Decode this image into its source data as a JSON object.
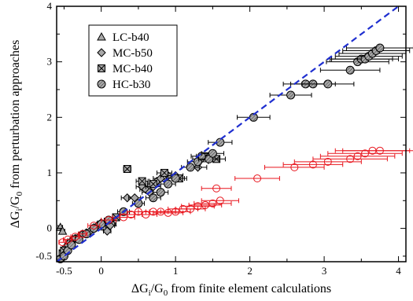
{
  "chart_data": {
    "type": "scatter",
    "xlabel": {
      "prefix": "ΔG",
      "sub1": "i",
      "mid": "/G",
      "sub2": "0",
      "suffix": " from finite element calculations"
    },
    "ylabel": {
      "prefix": "ΔG",
      "sub1": "i",
      "mid": "/G",
      "sub2": "0",
      "suffix": " from perturbation approaches"
    },
    "xlim": [
      -0.6,
      4.1
    ],
    "ylim": [
      -0.6,
      4.0
    ],
    "x_ticks": [
      -0.5,
      0,
      0.5,
      1,
      1.5,
      2,
      2.5,
      3,
      3.5,
      4
    ],
    "x_tick_labels": [
      "-0.5",
      "0",
      "1",
      "2",
      "3",
      "4"
    ],
    "y_ticks": [
      -0.5,
      0,
      0.5,
      1,
      1.5,
      2,
      2.5,
      3,
      3.5,
      4
    ],
    "y_tick_labels": [
      "-0.5",
      "0",
      "1",
      "2",
      "3",
      "4"
    ],
    "grid": false,
    "legend_position": "top-left",
    "legend": [
      {
        "label": "LC-b40",
        "marker": "triangle"
      },
      {
        "label": "MC-b50",
        "marker": "diamond"
      },
      {
        "label": "MC-b40",
        "marker": "square-x"
      },
      {
        "label": "HC-b30",
        "marker": "circle-hatched"
      }
    ],
    "reference_line": {
      "style": "dashed",
      "color": "#1f2fd0",
      "from": [
        -0.6,
        -0.6
      ],
      "to": [
        4.0,
        4.0
      ]
    },
    "colors": {
      "black_series": "#000000",
      "red_series": "#e8141c",
      "marker_fill": "#a8a8a8"
    },
    "series": [
      {
        "marker": "triangle",
        "color": "#000000",
        "points": [
          [
            -0.55,
            0.02
          ],
          [
            -0.52,
            -0.05
          ],
          [
            -0.4,
            -0.22
          ],
          [
            -0.3,
            -0.18
          ],
          [
            0.05,
            0.08
          ],
          [
            0.15,
            0.1
          ]
        ],
        "xerr": [
          0.03,
          0.03,
          0.05,
          0.05,
          0.05,
          0.05
        ]
      },
      {
        "marker": "diamond",
        "color": "#000000",
        "points": [
          [
            -0.48,
            -0.35
          ],
          [
            -0.45,
            -0.3
          ],
          [
            -0.42,
            -0.25
          ],
          [
            -0.38,
            -0.2
          ],
          [
            -0.35,
            -0.18
          ],
          [
            -0.3,
            -0.15
          ],
          [
            -0.25,
            -0.1
          ],
          [
            -0.2,
            -0.08
          ],
          [
            -0.15,
            -0.05
          ],
          [
            -0.1,
            0.0
          ],
          [
            -0.05,
            0.05
          ],
          [
            0.0,
            0.1
          ],
          [
            0.05,
            0.0
          ],
          [
            0.08,
            -0.05
          ],
          [
            0.12,
            0.05
          ],
          [
            0.35,
            0.55
          ],
          [
            0.45,
            0.55
          ],
          [
            0.55,
            0.75
          ],
          [
            0.6,
            0.7
          ],
          [
            0.65,
            0.65
          ],
          [
            0.7,
            0.75
          ],
          [
            0.75,
            0.85
          ],
          [
            0.8,
            0.9
          ],
          [
            0.9,
            0.95
          ],
          [
            1.0,
            0.95
          ],
          [
            1.3,
            1.1
          ],
          [
            1.35,
            1.25
          ],
          [
            1.45,
            1.25
          ]
        ],
        "xerr": [
          0.04,
          0.04,
          0.04,
          0.04,
          0.05,
          0.05,
          0.05,
          0.05,
          0.05,
          0.05,
          0.05,
          0.05,
          0.05,
          0.05,
          0.06,
          0.08,
          0.08,
          0.08,
          0.08,
          0.1,
          0.1,
          0.1,
          0.1,
          0.1,
          0.1,
          0.12,
          0.12,
          0.12
        ]
      },
      {
        "marker": "square-x",
        "color": "#000000",
        "points": [
          [
            -0.52,
            -0.45
          ],
          [
            -0.5,
            -0.4
          ],
          [
            0.2,
            0.2
          ],
          [
            0.35,
            1.07
          ],
          [
            0.55,
            0.85
          ],
          [
            0.7,
            0.8
          ],
          [
            0.85,
            1.0
          ],
          [
            1.05,
            0.9
          ],
          [
            1.4,
            1.3
          ],
          [
            1.55,
            1.25
          ]
        ],
        "xerr": [
          0.04,
          0.04,
          0.05,
          0.05,
          0.08,
          0.08,
          0.1,
          0.1,
          0.12,
          0.12
        ]
      },
      {
        "marker": "circle-hatched",
        "color": "#000000",
        "points": [
          [
            -0.55,
            -0.55
          ],
          [
            -0.5,
            -0.5
          ],
          [
            -0.45,
            -0.4
          ],
          [
            -0.4,
            -0.3
          ],
          [
            -0.3,
            -0.2
          ],
          [
            -0.2,
            -0.1
          ],
          [
            -0.1,
            0.0
          ],
          [
            0.0,
            0.08
          ],
          [
            0.1,
            0.15
          ],
          [
            0.3,
            0.3
          ],
          [
            0.5,
            0.45
          ],
          [
            0.7,
            0.55
          ],
          [
            0.8,
            0.65
          ],
          [
            0.9,
            0.8
          ],
          [
            1.0,
            0.9
          ],
          [
            1.2,
            1.1
          ],
          [
            1.3,
            1.2
          ],
          [
            1.35,
            1.3
          ],
          [
            1.45,
            1.25
          ],
          [
            1.5,
            1.35
          ],
          [
            1.6,
            1.55
          ],
          [
            2.05,
            2.0
          ],
          [
            2.55,
            2.4
          ],
          [
            2.75,
            2.6
          ],
          [
            2.85,
            2.6
          ],
          [
            3.05,
            2.6
          ],
          [
            3.35,
            2.85
          ],
          [
            3.45,
            3.0
          ],
          [
            3.5,
            3.05
          ],
          [
            3.55,
            3.05
          ],
          [
            3.6,
            3.1
          ],
          [
            3.65,
            3.15
          ],
          [
            3.7,
            3.2
          ],
          [
            3.75,
            3.25
          ]
        ],
        "xerr": [
          0.03,
          0.03,
          0.04,
          0.04,
          0.05,
          0.05,
          0.05,
          0.06,
          0.06,
          0.08,
          0.08,
          0.1,
          0.1,
          0.1,
          0.12,
          0.12,
          0.14,
          0.14,
          0.14,
          0.15,
          0.16,
          0.22,
          0.28,
          0.3,
          0.3,
          0.35,
          0.4,
          0.42,
          0.42,
          0.45,
          0.45,
          0.45,
          0.45,
          0.45
        ]
      },
      {
        "marker": "open-circle",
        "color": "#e8141c",
        "points": [
          [
            -0.52,
            -0.25
          ],
          [
            -0.45,
            -0.2
          ],
          [
            -0.35,
            -0.15
          ],
          [
            -0.25,
            -0.1
          ],
          [
            -0.1,
            0.05
          ],
          [
            0.1,
            0.15
          ],
          [
            0.3,
            0.2
          ],
          [
            0.4,
            0.25
          ],
          [
            0.5,
            0.3
          ],
          [
            0.6,
            0.25
          ],
          [
            0.7,
            0.3
          ],
          [
            0.8,
            0.3
          ],
          [
            0.9,
            0.28
          ],
          [
            1.0,
            0.3
          ],
          [
            1.1,
            0.35
          ],
          [
            1.2,
            0.35
          ],
          [
            1.3,
            0.4
          ],
          [
            1.4,
            0.42
          ],
          [
            1.5,
            0.45
          ],
          [
            1.6,
            0.5
          ],
          [
            1.55,
            0.72
          ],
          [
            2.1,
            0.9
          ],
          [
            2.6,
            1.1
          ],
          [
            2.85,
            1.15
          ],
          [
            3.05,
            1.2
          ],
          [
            3.35,
            1.25
          ],
          [
            3.45,
            1.3
          ],
          [
            3.55,
            1.35
          ],
          [
            3.65,
            1.4
          ],
          [
            3.75,
            1.4
          ]
        ],
        "xerr": [
          0.05,
          0.06,
          0.06,
          0.06,
          0.08,
          0.1,
          0.15,
          0.15,
          0.15,
          0.15,
          0.2,
          0.2,
          0.2,
          0.2,
          0.2,
          0.2,
          0.22,
          0.22,
          0.25,
          0.25,
          0.2,
          0.3,
          0.4,
          0.4,
          0.45,
          0.5,
          0.5,
          0.5,
          0.5,
          0.5
        ]
      }
    ]
  }
}
